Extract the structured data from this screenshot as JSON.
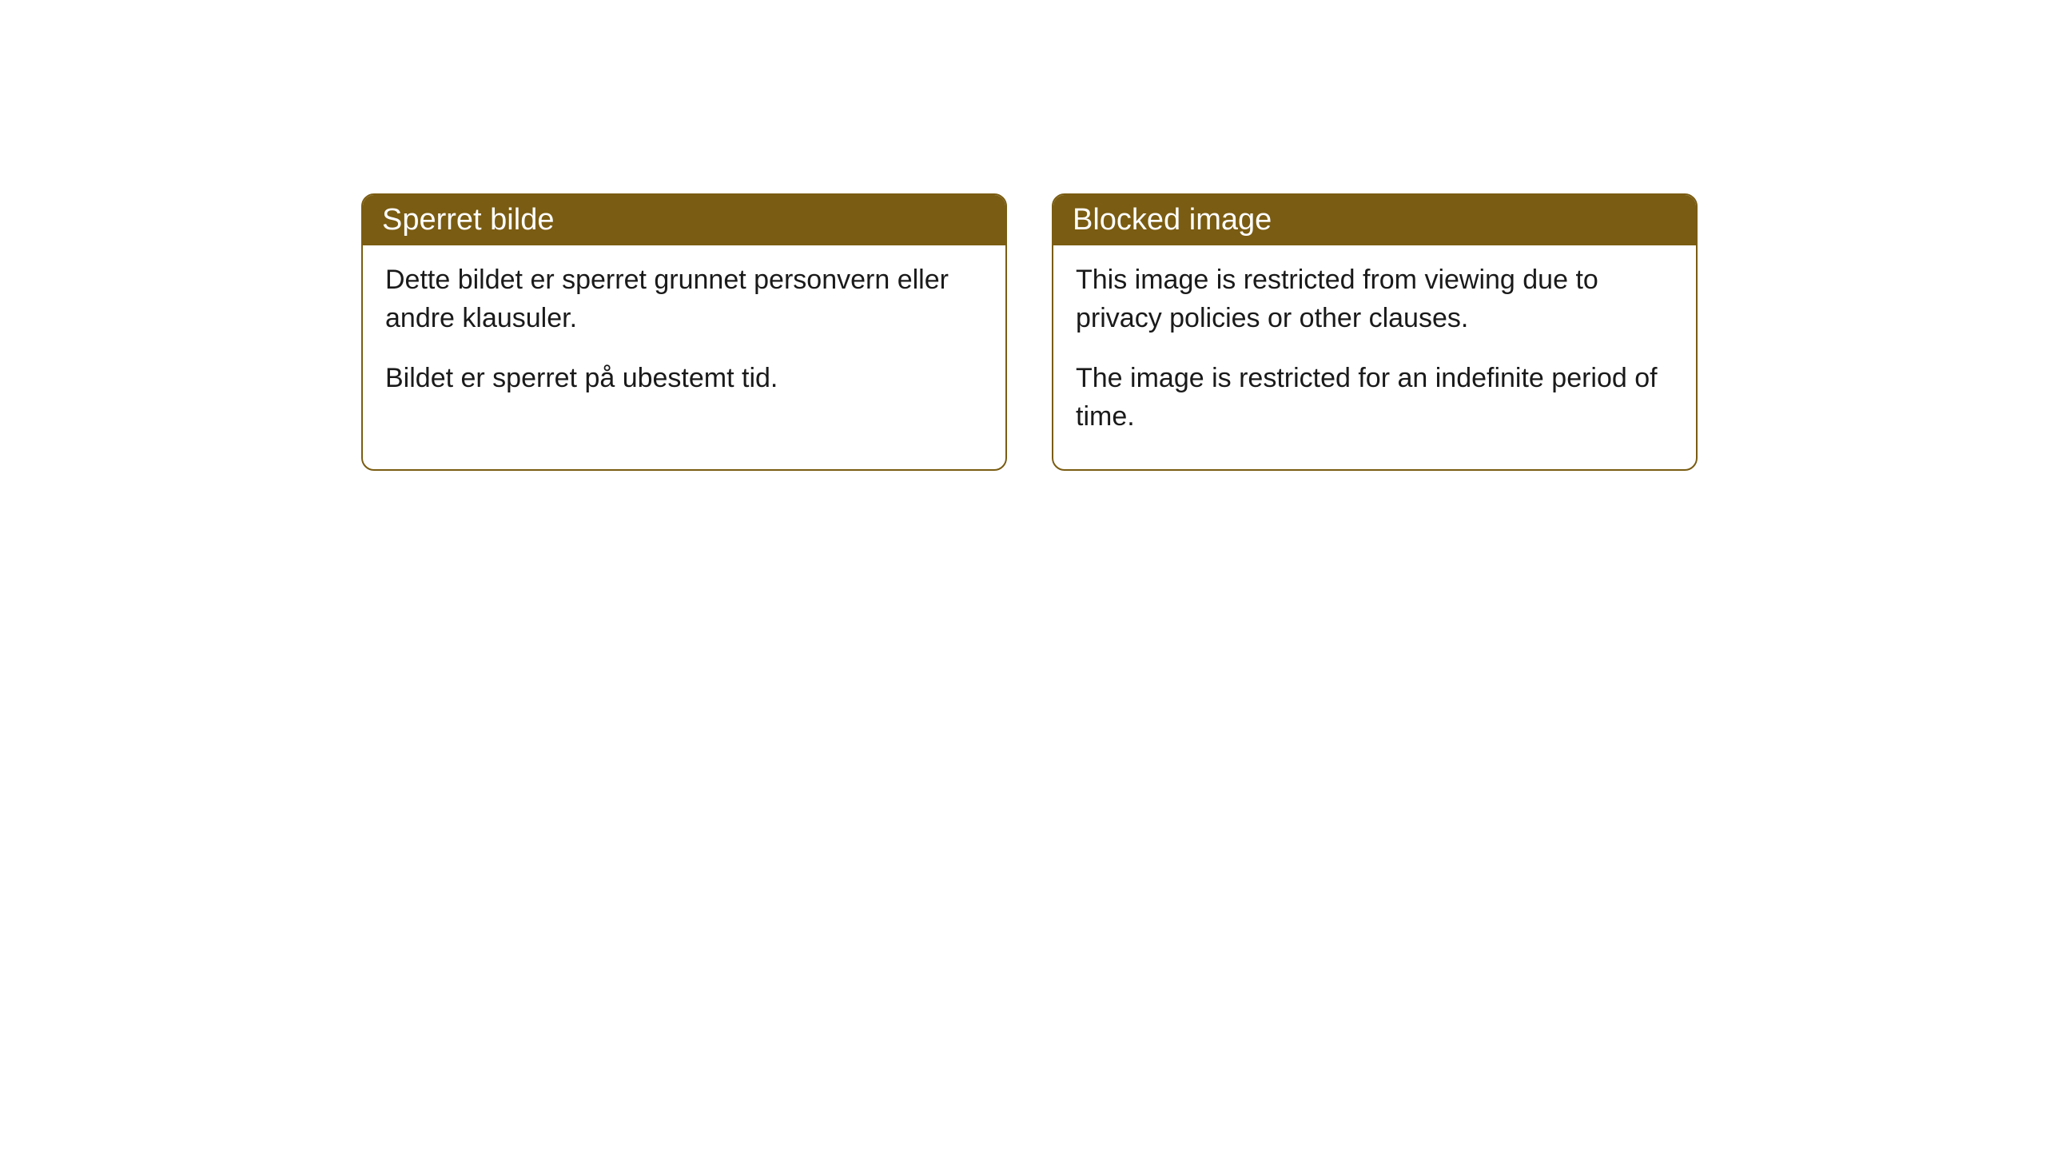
{
  "cards": [
    {
      "header": "Sperret bilde",
      "paragraph1": "Dette bildet er sperret grunnet personvern eller andre klausuler.",
      "paragraph2": "Bildet er sperret på ubestemt tid."
    },
    {
      "header": "Blocked image",
      "paragraph1": "This image is restricted from viewing due to privacy policies or other clauses.",
      "paragraph2": "The image is restricted for an indefinite period of time."
    }
  ],
  "styling": {
    "header_background": "#7a5c12",
    "header_text_color": "#ffffff",
    "border_color": "#7a5c12",
    "body_background": "#ffffff",
    "body_text_color": "#1a1a1a",
    "border_radius": 16,
    "header_fontsize": 38,
    "body_fontsize": 34
  }
}
